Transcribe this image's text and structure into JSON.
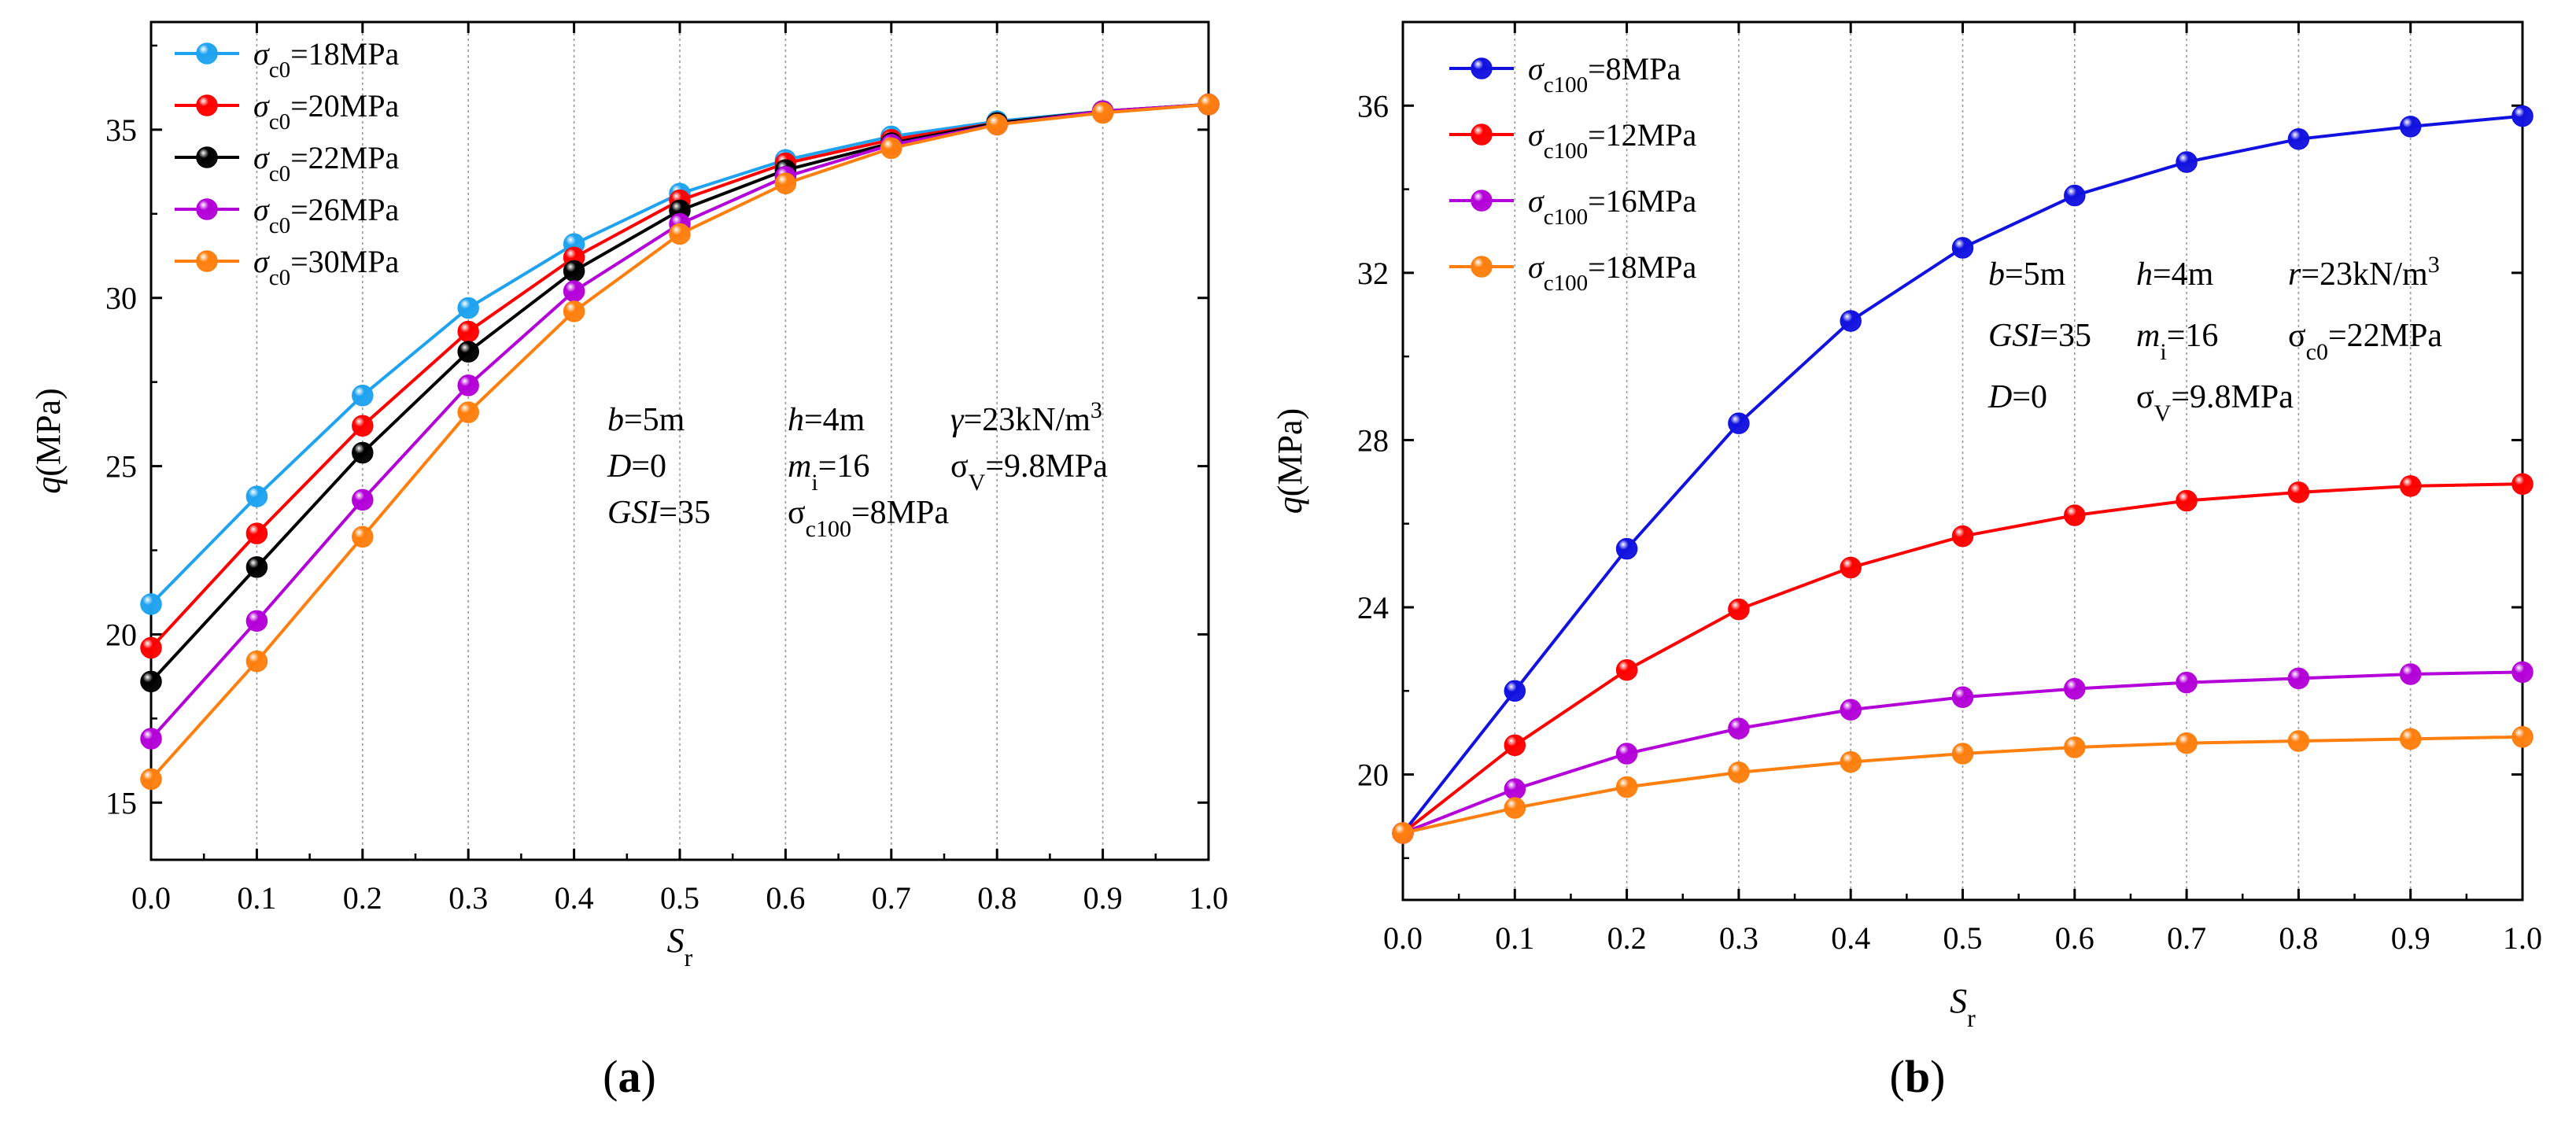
{
  "chart_data": [
    {
      "type": "line",
      "panel_label": "a",
      "xlabel": {
        "main": "S",
        "sub": "r"
      },
      "ylabel": {
        "main": "q",
        "rest": "(MPa)"
      },
      "xlim": [
        0,
        1.0
      ],
      "ylim": [
        13.3,
        38.2
      ],
      "xticks": [
        0.0,
        0.1,
        0.2,
        0.3,
        0.4,
        0.5,
        0.6,
        0.7,
        0.8,
        0.9,
        1.0
      ],
      "xtick_labels": [
        "0.0",
        "0.1",
        "0.2",
        "0.3",
        "0.4",
        "0.5",
        "0.6",
        "0.7",
        "0.8",
        "0.9",
        "1.0"
      ],
      "yticks": [
        15,
        20,
        25,
        30,
        35
      ],
      "ytick_labels": [
        "15",
        "20",
        "25",
        "30",
        "35"
      ],
      "grid": "vertical dotted",
      "legend_position": "top-left",
      "x": [
        0.0,
        0.1,
        0.2,
        0.3,
        0.4,
        0.5,
        0.6,
        0.7,
        0.8,
        0.9,
        1.0
      ],
      "series": [
        {
          "name": "σc0=18MPa",
          "sym": "σ",
          "sub": "c0",
          "rest": "=18MPa",
          "color": "#1fa3f0",
          "values": [
            20.9,
            24.1,
            27.1,
            29.7,
            31.6,
            33.1,
            34.1,
            34.8,
            35.25,
            35.55,
            35.75
          ]
        },
        {
          "name": "σc0=20MPa",
          "sym": "σ",
          "sub": "c0",
          "rest": "=20MPa",
          "color": "#ff0000",
          "values": [
            19.6,
            23.0,
            26.2,
            29.0,
            31.2,
            32.9,
            34.0,
            34.7,
            35.2,
            35.55,
            35.75
          ]
        },
        {
          "name": "σc0=22MPa",
          "sym": "σ",
          "sub": "c0",
          "rest": "=22MPa",
          "color": "#000000",
          "values": [
            18.6,
            22.0,
            25.4,
            28.4,
            30.8,
            32.6,
            33.8,
            34.6,
            35.2,
            35.55,
            35.75
          ]
        },
        {
          "name": "σc0=26MPa",
          "sym": "σ",
          "sub": "c0",
          "rest": "=26MPa",
          "color": "#b400d8",
          "values": [
            16.9,
            20.4,
            24.0,
            27.4,
            30.2,
            32.2,
            33.6,
            34.55,
            35.15,
            35.55,
            35.75
          ]
        },
        {
          "name": "σc0=30MPa",
          "sym": "σ",
          "sub": "c0",
          "rest": "=30MPa",
          "color": "#ff7f0e",
          "values": [
            15.7,
            19.2,
            22.9,
            26.6,
            29.6,
            31.9,
            33.4,
            34.45,
            35.15,
            35.5,
            35.75
          ]
        }
      ],
      "annotations": [
        {
          "lines": [
            [
              {
                "t": "b",
                "i": true
              },
              {
                "t": "=5m"
              }
            ],
            [
              {
                "t": "D",
                "i": true
              },
              {
                "t": "=0"
              }
            ],
            [
              {
                "t": "GSI",
                "i": true
              },
              {
                "t": "=35"
              }
            ]
          ]
        },
        {
          "lines": [
            [
              {
                "t": "h",
                "i": true
              },
              {
                "t": "=4m"
              }
            ],
            [
              {
                "t": "m",
                "i": true
              },
              {
                "t": "i",
                "s": "sub"
              },
              {
                "t": "=16"
              }
            ],
            [
              {
                "t": "σ"
              },
              {
                "t": "c100",
                "s": "sub"
              },
              {
                "t": "=8MPa"
              }
            ]
          ]
        },
        {
          "lines": [
            [
              {
                "t": "γ",
                "i": true
              },
              {
                "t": "=23kN/m"
              },
              {
                "t": "3",
                "s": "sup"
              }
            ],
            [
              {
                "t": "σ"
              },
              {
                "t": "V",
                "s": "sub"
              },
              {
                "t": "=9.8MPa"
              }
            ]
          ]
        }
      ]
    },
    {
      "type": "line",
      "panel_label": "b",
      "xlabel": {
        "main": "S",
        "sub": "r"
      },
      "ylabel": {
        "main": "q",
        "rest": "(MPa)"
      },
      "xlim": [
        0,
        1.0
      ],
      "ylim": [
        17.0,
        38.0
      ],
      "xticks": [
        0.0,
        0.1,
        0.2,
        0.3,
        0.4,
        0.5,
        0.6,
        0.7,
        0.8,
        0.9,
        1.0
      ],
      "xtick_labels": [
        "0.0",
        "0.1",
        "0.2",
        "0.3",
        "0.4",
        "0.5",
        "0.6",
        "0.7",
        "0.8",
        "0.9",
        "1.0"
      ],
      "yticks": [
        20,
        24,
        28,
        32,
        36
      ],
      "ytick_labels": [
        "20",
        "24",
        "28",
        "32",
        "36"
      ],
      "grid": "vertical dotted",
      "legend_position": "top-left",
      "x": [
        0.0,
        0.1,
        0.2,
        0.3,
        0.4,
        0.5,
        0.6,
        0.7,
        0.8,
        0.9,
        1.0
      ],
      "series": [
        {
          "name": "σc100=8MPa",
          "sym": "σ",
          "sub": "c100",
          "rest": "=8MPa",
          "color": "#1212e0",
          "values": [
            18.6,
            22.0,
            25.4,
            28.4,
            30.85,
            32.6,
            33.85,
            34.65,
            35.2,
            35.5,
            35.75
          ]
        },
        {
          "name": "σc100=12MPa",
          "sym": "σ",
          "sub": "c100",
          "rest": "=12MPa",
          "color": "#ff0000",
          "values": [
            18.6,
            20.7,
            22.5,
            23.95,
            24.95,
            25.7,
            26.2,
            26.55,
            26.75,
            26.9,
            26.95
          ]
        },
        {
          "name": "σc100=16MPa",
          "sym": "σ",
          "sub": "c100",
          "rest": "=16MPa",
          "color": "#b400d8",
          "values": [
            18.6,
            19.65,
            20.5,
            21.1,
            21.55,
            21.85,
            22.05,
            22.2,
            22.3,
            22.4,
            22.45
          ]
        },
        {
          "name": "σc100=18MPa",
          "sym": "σ",
          "sub": "c100",
          "rest": "=18MPa",
          "color": "#ff7f0e",
          "values": [
            18.6,
            19.2,
            19.7,
            20.05,
            20.3,
            20.5,
            20.65,
            20.75,
            20.8,
            20.85,
            20.9
          ]
        }
      ],
      "annotations": [
        {
          "lines": [
            [
              {
                "t": "b",
                "i": true
              },
              {
                "t": "=5m"
              }
            ],
            [
              {
                "t": "GSI",
                "i": true
              },
              {
                "t": "=35"
              }
            ],
            [
              {
                "t": "D",
                "i": true
              },
              {
                "t": "=0"
              }
            ]
          ]
        },
        {
          "lines": [
            [
              {
                "t": "h",
                "i": true
              },
              {
                "t": "=4m"
              }
            ],
            [
              {
                "t": "m",
                "i": true
              },
              {
                "t": "i",
                "s": "sub"
              },
              {
                "t": "=16"
              }
            ],
            [
              {
                "t": "σ"
              },
              {
                "t": "V",
                "s": "sub"
              },
              {
                "t": "=9.8MPa"
              }
            ]
          ]
        },
        {
          "lines": [
            [
              {
                "t": "r",
                "i": true
              },
              {
                "t": "=23kN/m"
              },
              {
                "t": "3",
                "s": "sup"
              }
            ],
            [
              {
                "t": "σ"
              },
              {
                "t": "c0",
                "s": "sub"
              },
              {
                "t": "=22MPa"
              }
            ]
          ]
        }
      ]
    }
  ]
}
